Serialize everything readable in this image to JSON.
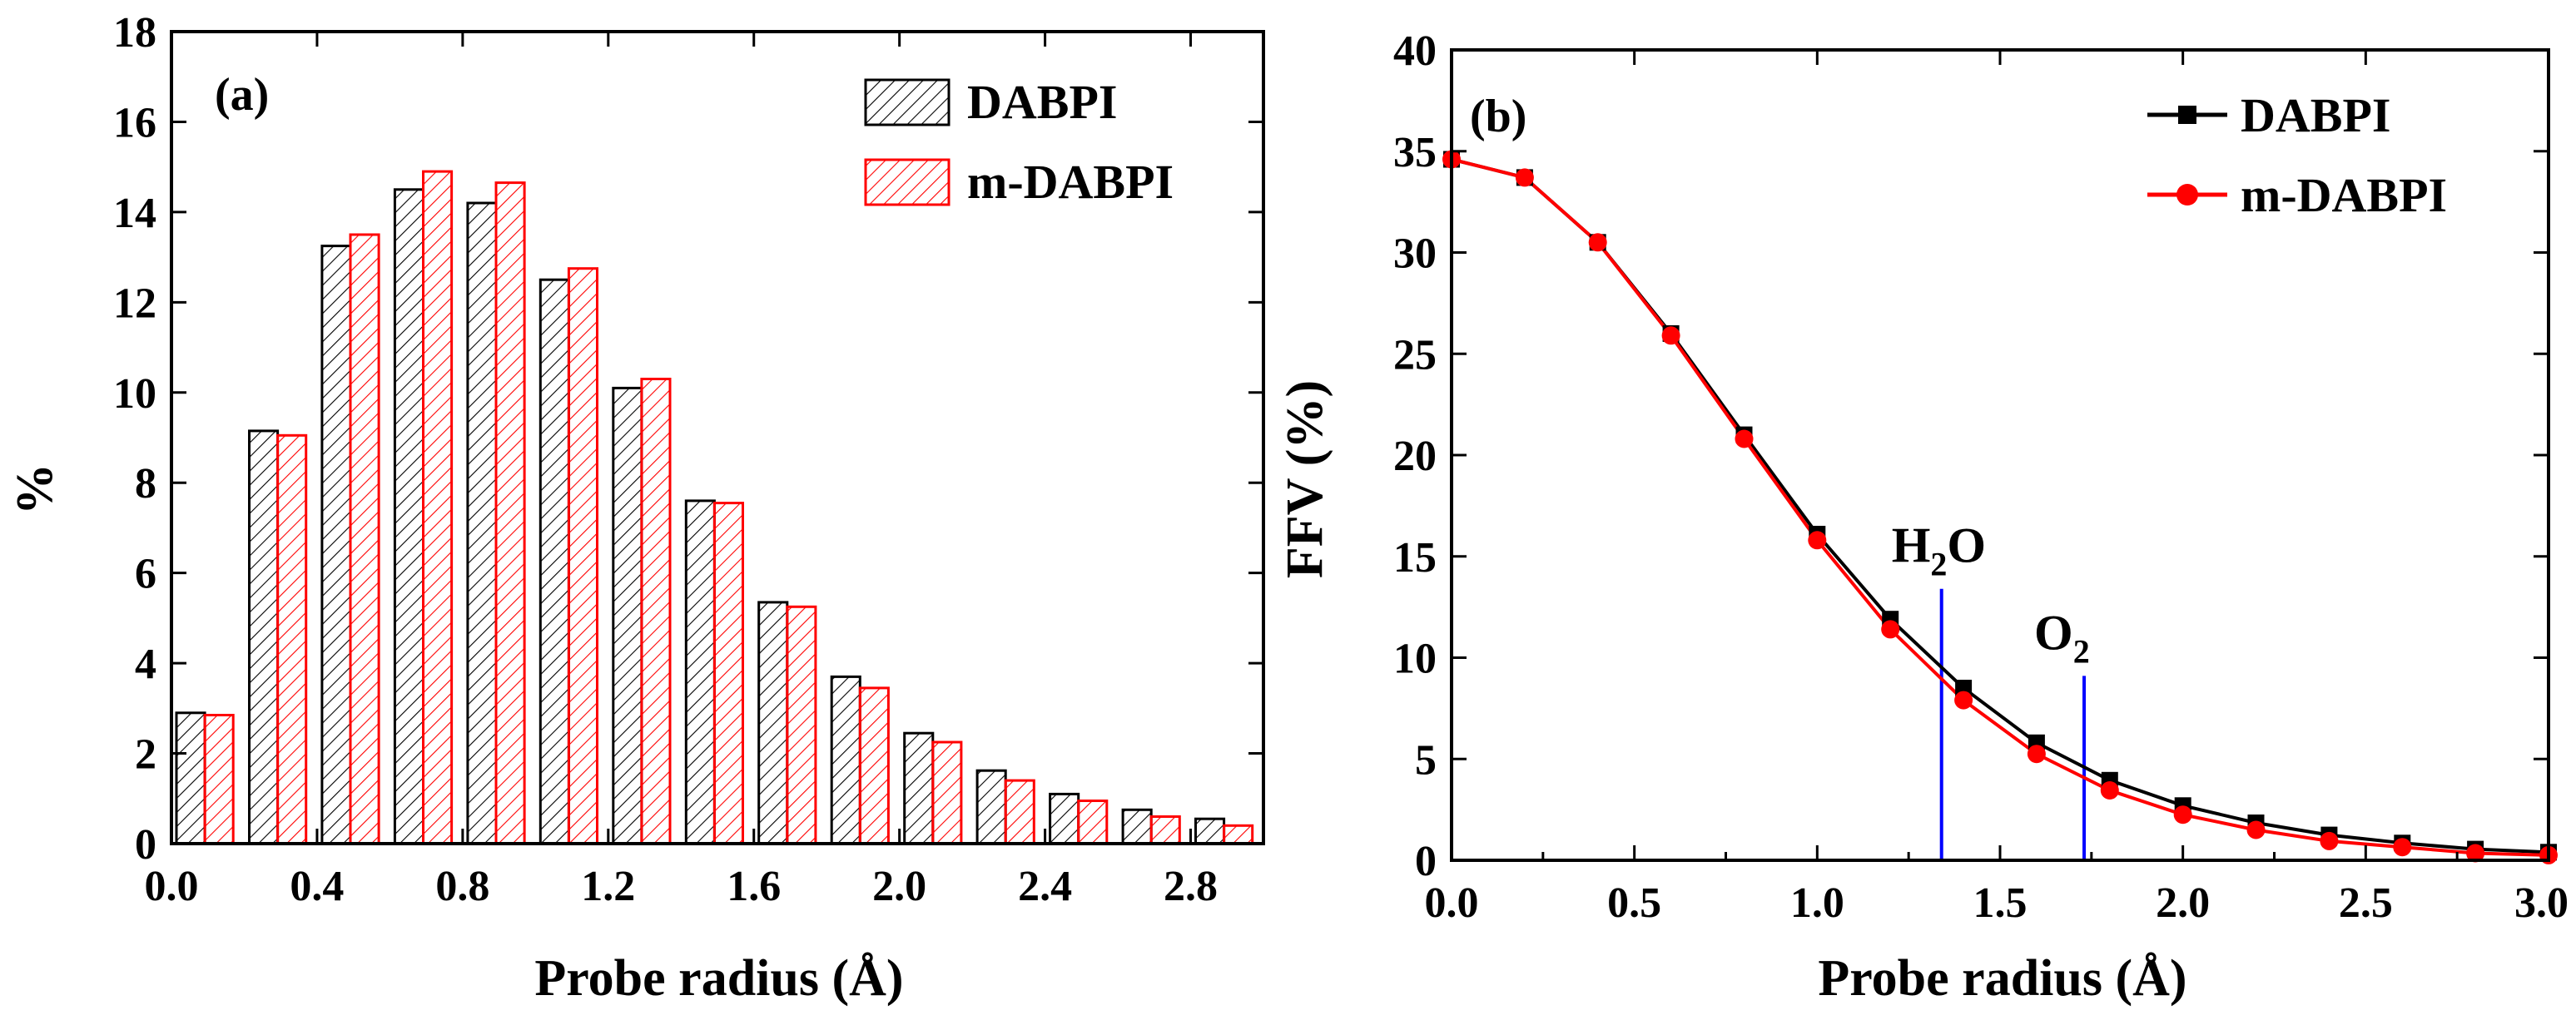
{
  "colors": {
    "series1": "#000000",
    "series2": "#ff0000",
    "marker_line": "#0000ff"
  },
  "chart_data": [
    {
      "type": "bar",
      "panel_label": "(a)",
      "xlabel": "Probe radius (Å)",
      "ylabel": "%",
      "xlim": [
        0.0,
        3.0
      ],
      "ylim": [
        0,
        18
      ],
      "xticks": [
        "0.0",
        "0.4",
        "0.8",
        "1.2",
        "1.6",
        "2.0",
        "2.4",
        "2.8"
      ],
      "yticks": [
        "0",
        "2",
        "4",
        "6",
        "8",
        "10",
        "12",
        "14",
        "16",
        "18"
      ],
      "legend": {
        "position": "top-right",
        "entries": [
          "DABPI",
          "m-DABPI"
        ]
      },
      "categories": [
        0.0,
        0.2,
        0.4,
        0.6,
        0.8,
        1.0,
        1.2,
        1.4,
        1.6,
        1.8,
        2.0,
        2.2,
        2.4,
        2.6,
        2.8
      ],
      "series": [
        {
          "name": "DABPI",
          "values": [
            2.9,
            9.15,
            13.25,
            14.5,
            14.2,
            12.5,
            10.1,
            7.6,
            5.35,
            3.7,
            2.45,
            1.62,
            1.1,
            0.75,
            0.55
          ]
        },
        {
          "name": "m-DABPI",
          "values": [
            2.85,
            9.05,
            13.5,
            14.9,
            14.65,
            12.75,
            10.3,
            7.55,
            5.25,
            3.45,
            2.25,
            1.4,
            0.95,
            0.6,
            0.4
          ]
        }
      ]
    },
    {
      "type": "line",
      "panel_label": "(b)",
      "xlabel": "Probe radius (Å)",
      "ylabel": "FFV (%)",
      "xlim": [
        0.0,
        3.0
      ],
      "ylim": [
        0,
        40
      ],
      "xticks": [
        "0.0",
        "0.5",
        "1.0",
        "1.5",
        "2.0",
        "2.5",
        "3.0"
      ],
      "yticks": [
        "0",
        "5",
        "10",
        "15",
        "20",
        "25",
        "30",
        "35",
        "40"
      ],
      "legend": {
        "position": "top-right",
        "entries": [
          "DABPI",
          "m-DABPI"
        ]
      },
      "x": [
        0.0,
        0.2,
        0.4,
        0.6,
        0.8,
        1.0,
        1.2,
        1.4,
        1.6,
        1.8,
        2.0,
        2.2,
        2.4,
        2.6,
        2.8,
        3.0
      ],
      "series": [
        {
          "name": "DABPI",
          "marker": "square",
          "values": [
            34.6,
            33.7,
            30.5,
            26.0,
            21.0,
            16.1,
            11.9,
            8.5,
            5.8,
            3.95,
            2.7,
            1.85,
            1.25,
            0.85,
            0.55,
            0.4
          ]
        },
        {
          "name": "m-DABPI",
          "marker": "circle",
          "values": [
            34.6,
            33.7,
            30.5,
            25.9,
            20.8,
            15.8,
            11.4,
            7.9,
            5.25,
            3.45,
            2.25,
            1.5,
            0.95,
            0.65,
            0.35,
            0.25
          ]
        }
      ],
      "annotations": [
        {
          "label": "H",
          "subscript": "2",
          "suffix": "O",
          "x": 1.34,
          "y_top": 13.4
        },
        {
          "label": "O",
          "subscript": "2",
          "suffix": "",
          "x": 1.73,
          "y_top": 9.1
        }
      ]
    }
  ]
}
